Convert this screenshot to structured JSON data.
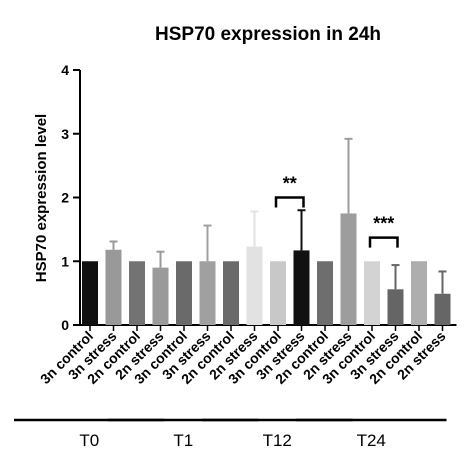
{
  "chart_data": {
    "type": "bar",
    "title": "HSP70 expression in 24h",
    "ylabel": "HSP70 expression level",
    "xlabel": "",
    "ylim": [
      0,
      4
    ],
    "yticks": [
      0,
      1,
      2,
      3,
      4
    ],
    "grid": false,
    "legend": "none",
    "categories": [
      "3n control",
      "3n stress",
      "2n control",
      "2n stress",
      "3n control",
      "3n stress",
      "2n control",
      "2n stress",
      "3n control",
      "3n stress",
      "2n control",
      "2n stress",
      "3n control",
      "3n stress",
      "2n control",
      "2n stress"
    ],
    "values": [
      1.0,
      1.18,
      1.0,
      0.9,
      1.0,
      1.0,
      1.0,
      1.23,
      1.0,
      1.17,
      1.0,
      1.75,
      1.0,
      0.56,
      1.0,
      0.49
    ],
    "errors": [
      0,
      0.13,
      0,
      0.25,
      0,
      0.56,
      0,
      0.55,
      0,
      0.63,
      0,
      1.17,
      0,
      0.38,
      0,
      0.35
    ],
    "colors": [
      "#111111",
      "#999999",
      "#737373",
      "#9a9a9a",
      "#6a6a6a",
      "#a0a0a0",
      "#6a6a6a",
      "#e2e2e2",
      "#c8c8c8",
      "#111111",
      "#6e6e6e",
      "#9d9d9d",
      "#d3d3d3",
      "#656565",
      "#aeaeae",
      "#666666"
    ],
    "groups": [
      {
        "label": "T0",
        "start": 0,
        "end": 3
      },
      {
        "label": "T1",
        "start": 4,
        "end": 7
      },
      {
        "label": "T12",
        "start": 8,
        "end": 11
      },
      {
        "label": "T24",
        "start": 12,
        "end": 15
      }
    ],
    "annotations": [
      {
        "text": "**",
        "from": 8,
        "to": 9,
        "y": 2.0
      },
      {
        "text": "***",
        "from": 12,
        "to": 13,
        "y": 1.37
      }
    ]
  }
}
